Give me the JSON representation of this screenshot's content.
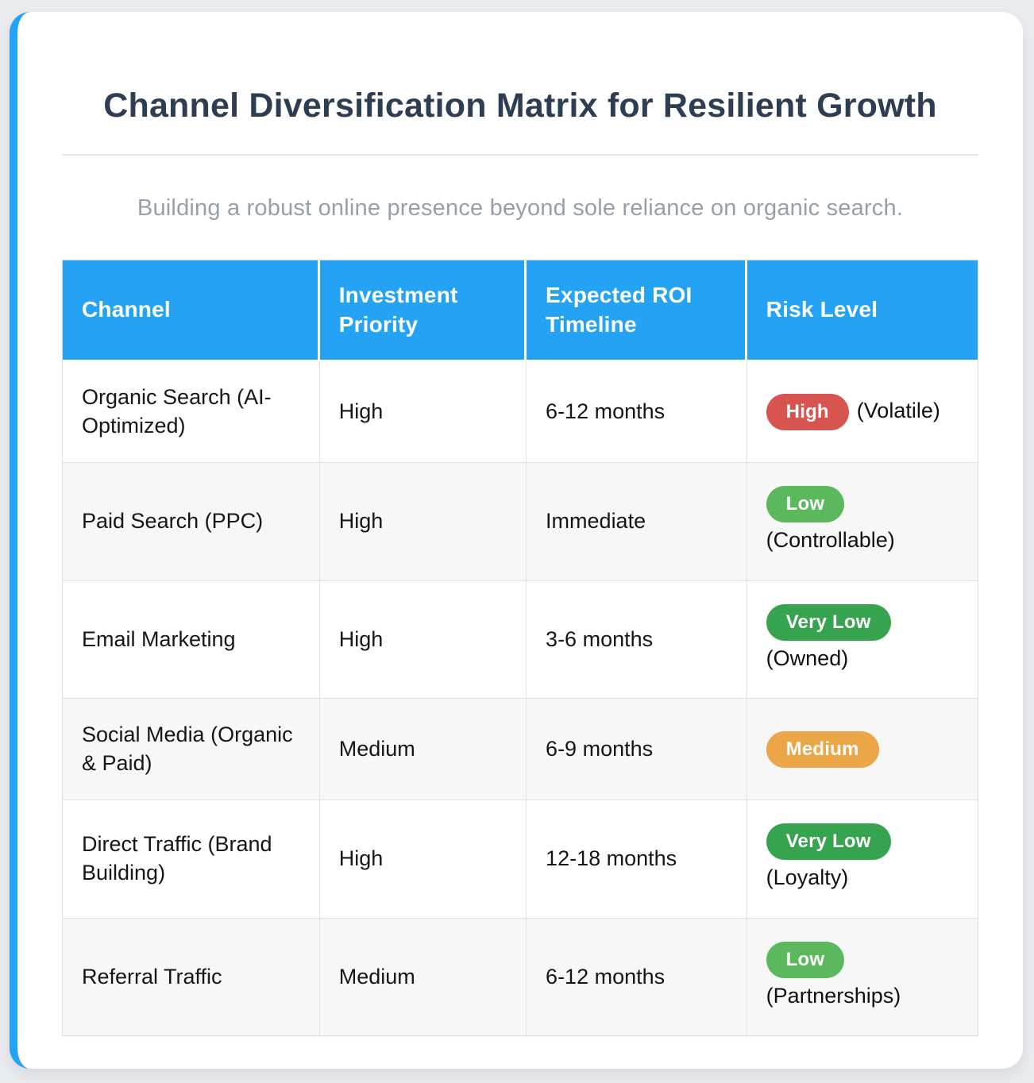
{
  "page": {
    "background_color": "#e9ebef",
    "accent_color": "#24a3f5"
  },
  "header": {
    "title": "Channel Diversification Matrix for Resilient Growth",
    "subtitle": "Building a robust online presence beyond sole reliance on organic search."
  },
  "table": {
    "columns": [
      "Channel",
      "Investment Priority",
      "Expected ROI Timeline",
      "Risk Level"
    ],
    "header_bg_color": "#24a3f5",
    "badge_colors": {
      "high": "#d65550",
      "medium": "#eaa647",
      "low": "#5cb85c",
      "very_low": "#36a44e"
    },
    "rows": [
      {
        "channel": "Organic Search (AI-Optimized)",
        "priority": "High",
        "timeline": "6-12 months",
        "risk_badge": "High",
        "risk_badge_color": "#d65550",
        "risk_note": "(Volatile)"
      },
      {
        "channel": "Paid Search (PPC)",
        "priority": "High",
        "timeline": "Immediate",
        "risk_badge": "Low",
        "risk_badge_color": "#5cb85c",
        "risk_note": "(Controllable)"
      },
      {
        "channel": "Email Marketing",
        "priority": "High",
        "timeline": "3-6 months",
        "risk_badge": "Very Low",
        "risk_badge_color": "#36a44e",
        "risk_note": "(Owned)"
      },
      {
        "channel": "Social Media (Organic & Paid)",
        "priority": "Medium",
        "timeline": "6-9 months",
        "risk_badge": "Medium",
        "risk_badge_color": "#eaa647",
        "risk_note": ""
      },
      {
        "channel": "Direct Traffic (Brand Building)",
        "priority": "High",
        "timeline": "12-18 months",
        "risk_badge": "Very Low",
        "risk_badge_color": "#36a44e",
        "risk_note": "(Loyalty)"
      },
      {
        "channel": "Referral Traffic",
        "priority": "Medium",
        "timeline": "6-12 months",
        "risk_badge": "Low",
        "risk_badge_color": "#5cb85c",
        "risk_note": "(Partnerships)"
      }
    ]
  }
}
